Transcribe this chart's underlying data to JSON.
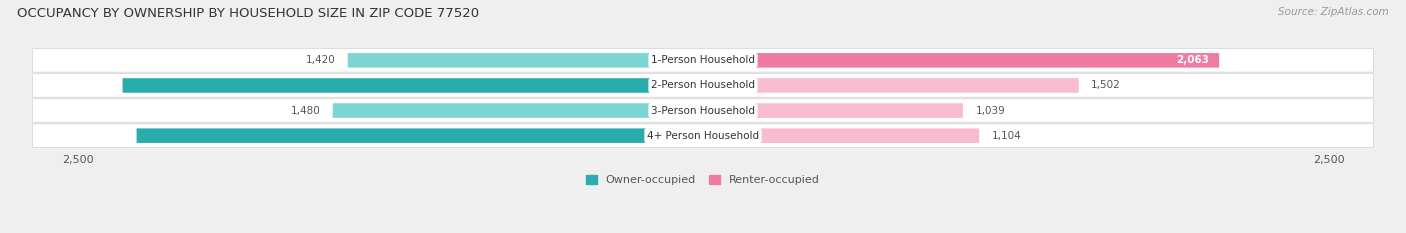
{
  "title": "OCCUPANCY BY OWNERSHIP BY HOUSEHOLD SIZE IN ZIP CODE 77520",
  "source": "Source: ZipAtlas.com",
  "categories": [
    "1-Person Household",
    "2-Person Household",
    "3-Person Household",
    "4+ Person Household"
  ],
  "owner_values": [
    1420,
    2320,
    1480,
    2264
  ],
  "renter_values": [
    2063,
    1502,
    1039,
    1104
  ],
  "max_val": 2500,
  "owner_color_dark": "#2AACAC",
  "owner_color_light": "#7DD4D4",
  "renter_color_dark": "#F07BA0",
  "renter_color_light": "#F9BBD0",
  "bg_color": "#efefef",
  "row_bg_color": "#f7f7f7",
  "row_border_color": "#d8d8d8",
  "title_fontsize": 9.5,
  "label_fontsize": 7.5,
  "axis_label_fontsize": 8,
  "legend_fontsize": 8,
  "source_fontsize": 7.5,
  "inside_label_threshold": 0.75
}
